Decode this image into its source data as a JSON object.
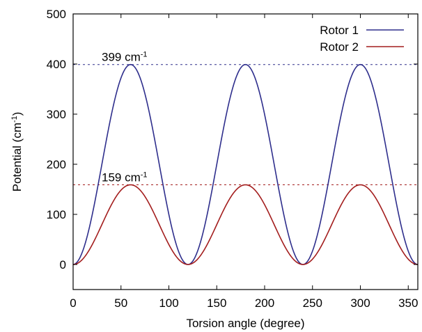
{
  "chart_data": {
    "type": "line",
    "xlabel": "Torsion angle (degree)",
    "ylabel": {
      "main": "Potential (cm",
      "sup": "-1",
      "end": ")"
    },
    "xlim": [
      0,
      360
    ],
    "ylim": [
      -50,
      500
    ],
    "xticks": [
      0,
      50,
      100,
      150,
      200,
      250,
      300,
      350
    ],
    "yticks": [
      0,
      100,
      200,
      300,
      400,
      500
    ],
    "grid": false,
    "legend_position": "top-right",
    "series": [
      {
        "name": "Rotor 1",
        "color": "#2e2e8c",
        "amplitude": 399,
        "periodicity": 3
      },
      {
        "name": "Rotor 2",
        "color": "#a31d1d",
        "amplitude": 159,
        "periodicity": 3
      }
    ],
    "reference_lines": [
      {
        "y": 399,
        "color": "#2e2e8c",
        "label": "399 cm",
        "sup": "-1"
      },
      {
        "y": 159,
        "color": "#a31d1d",
        "label": "159 cm",
        "sup": "-1"
      }
    ]
  }
}
